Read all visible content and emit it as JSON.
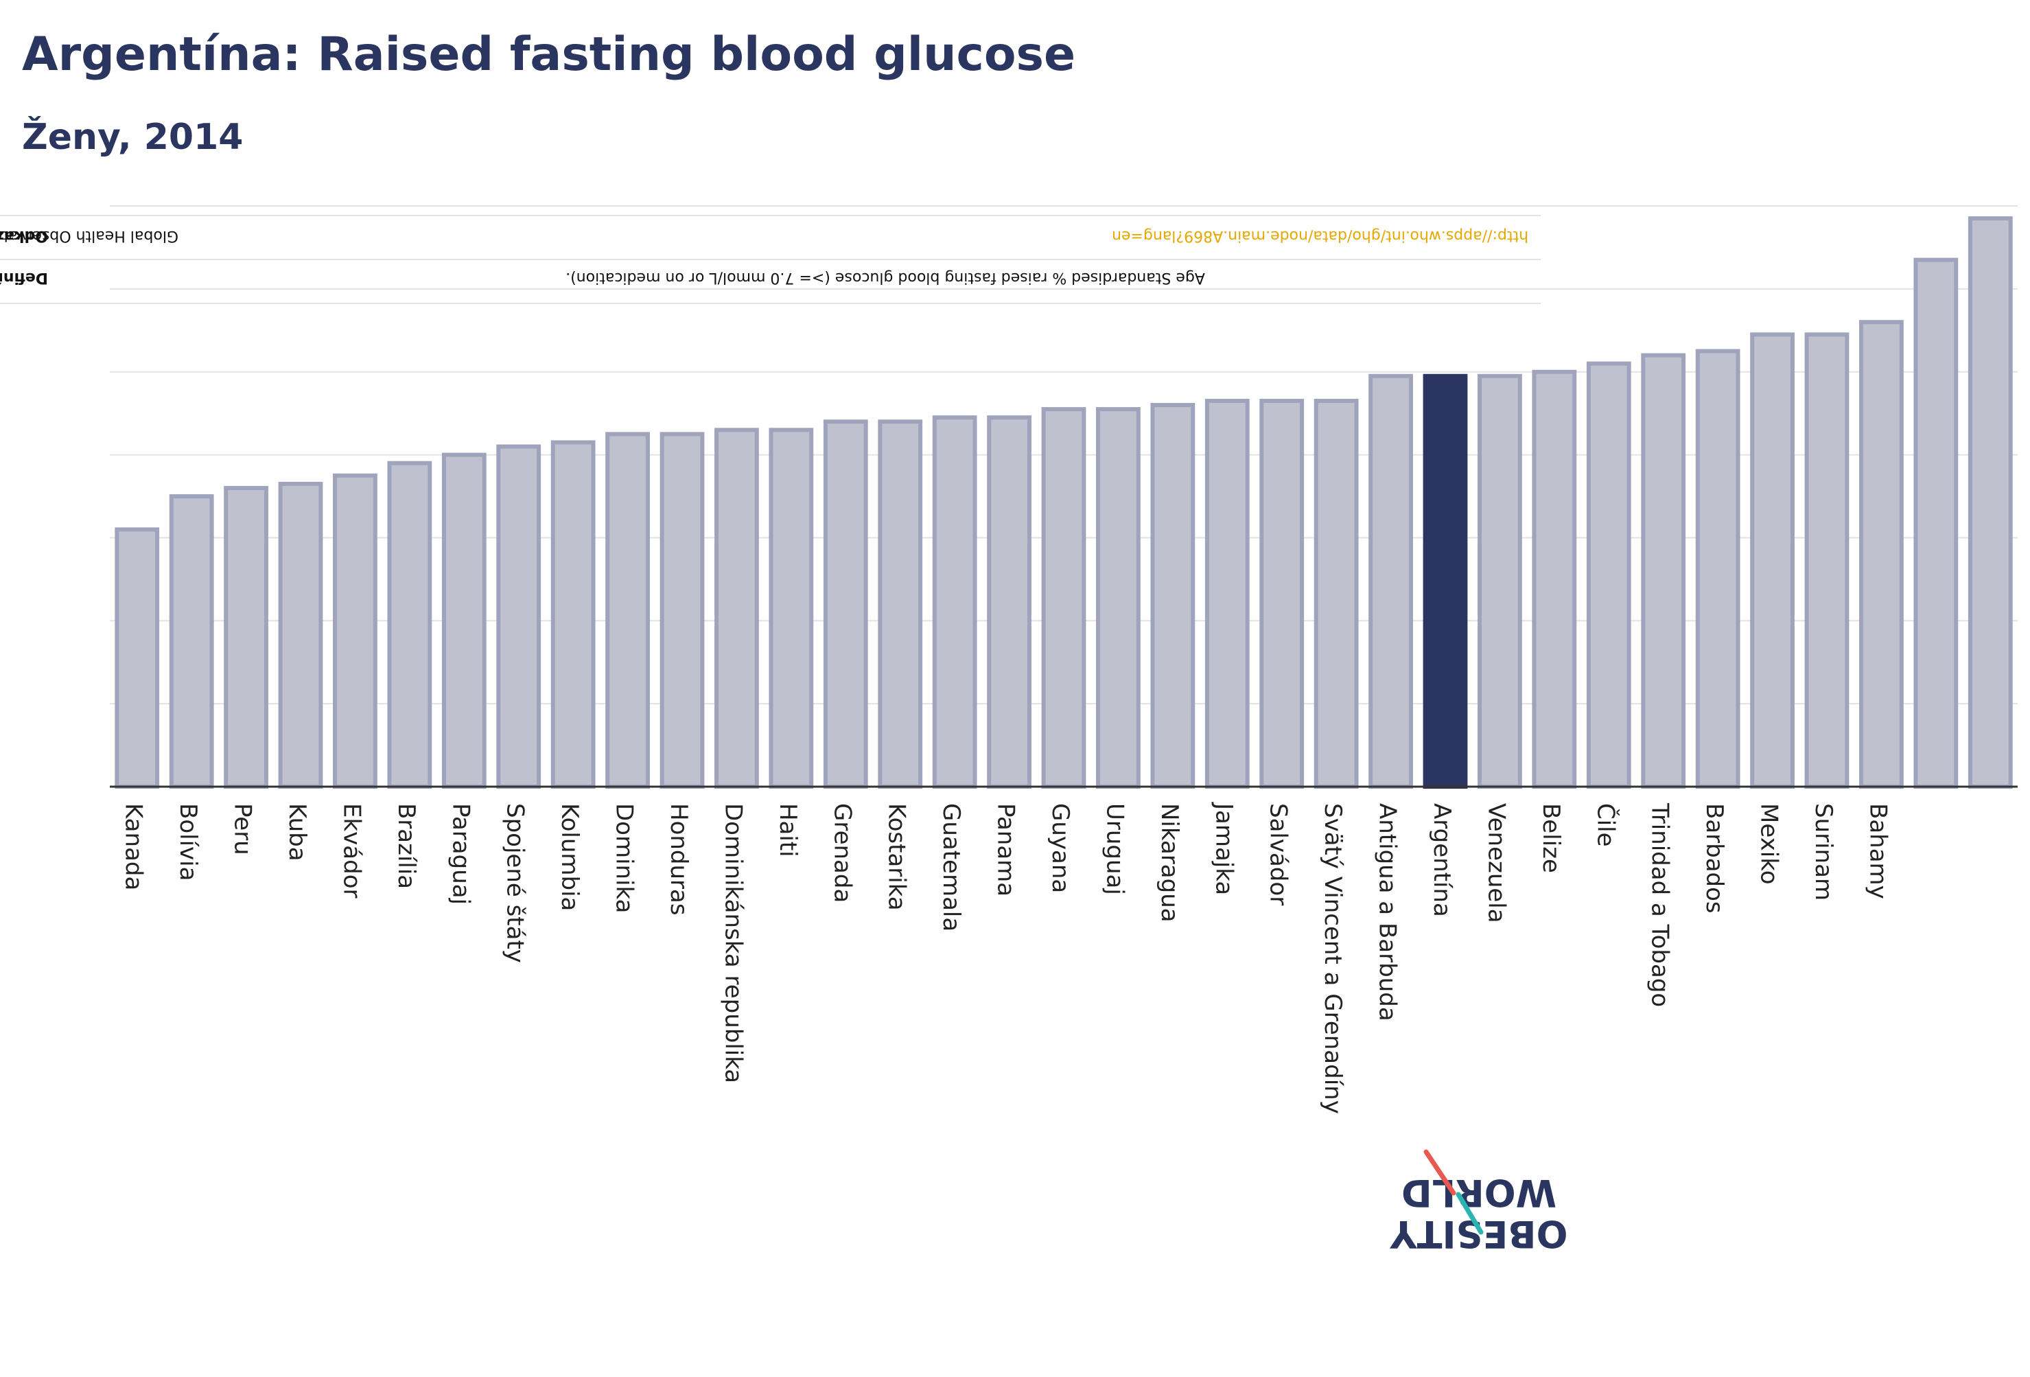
{
  "title": "Argentína: Raised fasting blood glucose",
  "subtitle": "Ženy, 2014",
  "notes": {
    "definition_label": "Definície (k dispozícii iba v angličtine):",
    "definition_text": "Age Standardised % raised fasting blood glucose (>= 7.0 mmol/L or on medication).",
    "references_label": "Odkazy:",
    "references_text": "Global Health Observatory data repository, World Health Organisation,",
    "references_link": "http://apps.who.int/gho/data/node.main.A869?lang=en"
  },
  "logo": {
    "line1": "OBESITY",
    "line2": "WORLD"
  },
  "colors": {
    "bar": "#bfc1ce",
    "bar_edge": "#9fa3bb",
    "highlight": "#2b3561",
    "text_dark": "#2a3560",
    "grid": "#e2e2e2",
    "link": "#e6a800",
    "logo_red": "#e85a4f",
    "logo_teal": "#2ab5b0"
  },
  "chart_data": {
    "type": "bar",
    "title": "Argentína: Raised fasting blood glucose",
    "subtitle": "Ženy, 2014",
    "xlabel": "",
    "ylabel": "",
    "ylim": [
      0,
      14
    ],
    "grid": true,
    "highlight": "Argentína",
    "categories": [
      "Kanada",
      "Bolívia",
      "Peru",
      "Kuba",
      "Ekvádor",
      "Brazília",
      "Paraguaj",
      "Spojené štáty",
      "Kolumbia",
      "Dominika",
      "Honduras",
      "Dominikánska republika",
      "Haiti",
      "Grenada",
      "Kostarika",
      "Guatemala",
      "Panama",
      "Guyana",
      "Uruguaj",
      "Nikaragua",
      "Jamajka",
      "Salvádor",
      "Svätý Vincent a Grenadíny",
      "Antigua a Barbuda",
      "Argentína",
      "Venezuela",
      "Belize",
      "Čile",
      "Trinidad a Tobago",
      "Barbados",
      "Mexiko",
      "Surinam",
      "Bahamy",
      "",
      ""
    ],
    "values": [
      6.2,
      7.0,
      7.2,
      7.3,
      7.5,
      7.8,
      8.0,
      8.2,
      8.3,
      8.5,
      8.5,
      8.6,
      8.6,
      8.8,
      8.8,
      8.9,
      8.9,
      9.1,
      9.1,
      9.2,
      9.3,
      9.3,
      9.3,
      9.9,
      9.9,
      9.9,
      10.0,
      10.2,
      10.4,
      10.5,
      10.9,
      10.9,
      11.2,
      12.7,
      13.7
    ]
  }
}
